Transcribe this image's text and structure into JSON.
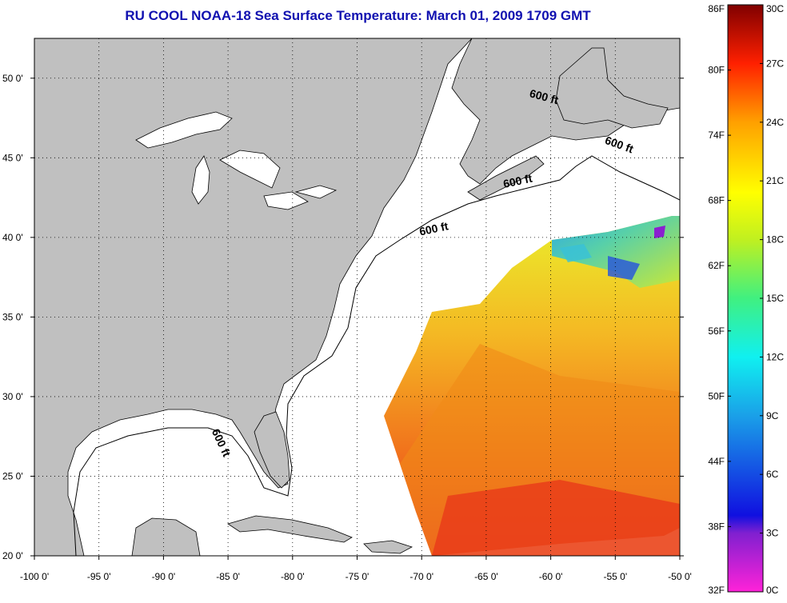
{
  "title": "RU COOL  NOAA-18  Sea Surface Temperature:  March 01, 2009 1709 GMT",
  "map": {
    "lon_range": [
      -100,
      -50
    ],
    "lat_range": [
      20,
      52.5
    ],
    "lon_ticks": [
      {
        "value": -100,
        "label": "-100 0'"
      },
      {
        "value": -95,
        "label": "-95 0'"
      },
      {
        "value": -90,
        "label": "-90 0'"
      },
      {
        "value": -85,
        "label": "-85 0'"
      },
      {
        "value": -80,
        "label": "-80 0'"
      },
      {
        "value": -75,
        "label": "-75 0'"
      },
      {
        "value": -70,
        "label": "-70 0'"
      },
      {
        "value": -65,
        "label": "-65 0'"
      },
      {
        "value": -60,
        "label": "-60 0'"
      },
      {
        "value": -55,
        "label": "-55 0'"
      },
      {
        "value": -50,
        "label": "-50 0'"
      }
    ],
    "lat_ticks": [
      {
        "value": 20,
        "label": "20 0'"
      },
      {
        "value": 25,
        "label": "25 0'"
      },
      {
        "value": 30,
        "label": "30 0'"
      },
      {
        "value": 35,
        "label": "35 0'"
      },
      {
        "value": 40,
        "label": "40 0'"
      },
      {
        "value": 45,
        "label": "45 0'"
      },
      {
        "value": 50,
        "label": "50 0'"
      }
    ],
    "grid": "dotted",
    "contour_label": "600 ft",
    "contour_labels": [
      {
        "lon": -60.6,
        "lat": 48.6,
        "rotation": 15
      },
      {
        "lon": -54.8,
        "lat": 45.6,
        "rotation": 20
      },
      {
        "lon": -62.5,
        "lat": 43.3,
        "rotation": -12
      },
      {
        "lon": -69.0,
        "lat": 40.3,
        "rotation": -12
      },
      {
        "lon": -85.8,
        "lat": 27.0,
        "rotation": 65
      }
    ],
    "land_color": "#c0c0c0",
    "water_color": "#ffffff"
  },
  "colorbar": {
    "min_c": 0,
    "max_c": 30,
    "celsius_ticks": [
      "30C",
      "27C",
      "24C",
      "21C",
      "18C",
      "15C",
      "12C",
      "9C",
      "6C",
      "3C",
      "0C"
    ],
    "fahrenheit_ticks": [
      "86F",
      "80F",
      "74F",
      "68F",
      "62F",
      "56F",
      "50F",
      "44F",
      "38F",
      "32F"
    ]
  }
}
